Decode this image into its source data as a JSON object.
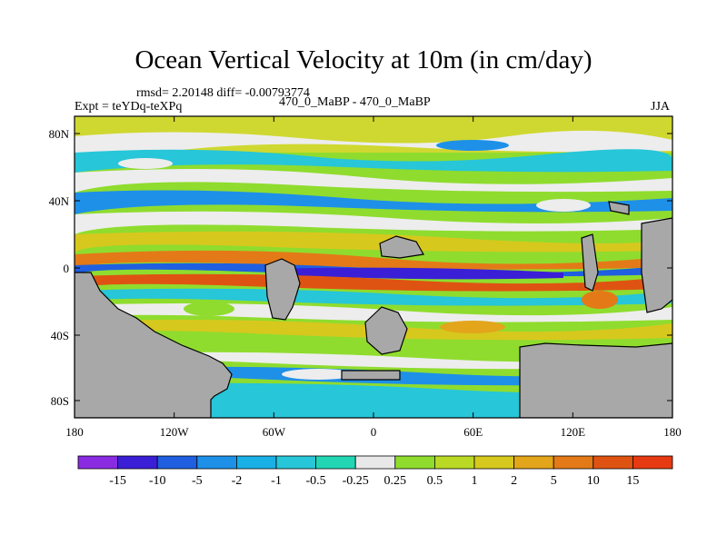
{
  "title": "Ocean Vertical Velocity at 10m (in cm/day)",
  "stats": "rmsd= 2.20148  diff= -0.00793774",
  "experiment": "Expt = teYDq-teXPq",
  "runs": "470_0_MaBP - 470_0_MaBP",
  "season": "JJA",
  "chart_data": {
    "type": "heatmap",
    "x_ticks": [
      "180",
      "120W",
      "60W",
      "0",
      "60E",
      "120E",
      "180"
    ],
    "y_ticks": [
      "80N",
      "40N",
      "0",
      "40S",
      "80S"
    ],
    "colorbar": {
      "labels": [
        "-15",
        "-10",
        "-5",
        "-2",
        "-1",
        "-0.5",
        "-0.25",
        "0.25",
        "0.5",
        "1",
        "2",
        "5",
        "10",
        "15"
      ],
      "colors": [
        "#8a2be2",
        "#3a1fd6",
        "#1f5fe0",
        "#1e90e8",
        "#19b0e6",
        "#27c6d8",
        "#22d6b4",
        "#e8e8e8",
        "#8fdc2e",
        "#b9d924",
        "#d7c81e",
        "#e3a51a",
        "#e37a17",
        "#df5312",
        "#e63a12"
      ]
    },
    "land_color": "#a8a8a8"
  }
}
